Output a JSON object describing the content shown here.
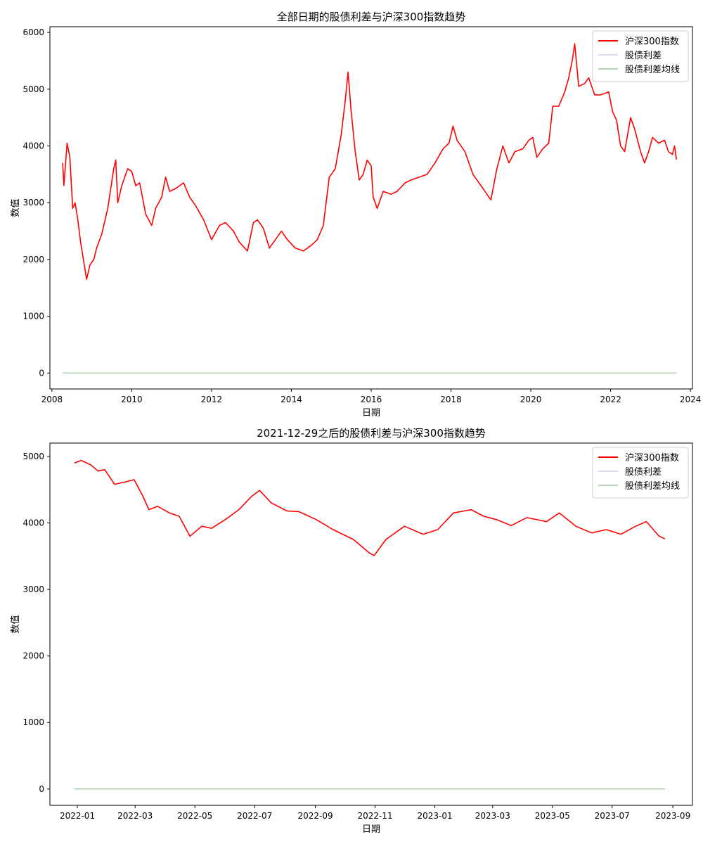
{
  "chart_data": [
    {
      "type": "line",
      "title": "全部日期的股债利差与沪深300指数趋势",
      "xlabel": "日期",
      "ylabel": "数值",
      "x_ticks": [
        "2008",
        "2010",
        "2012",
        "2014",
        "2016",
        "2018",
        "2020",
        "2022",
        "2024"
      ],
      "y_ticks": [
        "0",
        "1000",
        "2000",
        "3000",
        "4000",
        "5000",
        "6000"
      ],
      "xlim": [
        2007.95,
        2024.05
      ],
      "ylim": [
        -280,
        6100
      ],
      "grid": false,
      "legend_position": "top-right",
      "series": [
        {
          "name": "沪深300指数",
          "color": "#ff0000",
          "points": [
            [
              2008.27,
              3700
            ],
            [
              2008.3,
              3300
            ],
            [
              2008.38,
              4050
            ],
            [
              2008.45,
              3800
            ],
            [
              2008.52,
              2900
            ],
            [
              2008.58,
              3000
            ],
            [
              2008.65,
              2700
            ],
            [
              2008.72,
              2300
            ],
            [
              2008.8,
              1950
            ],
            [
              2008.87,
              1650
            ],
            [
              2008.95,
              1900
            ],
            [
              2009.05,
              2000
            ],
            [
              2009.12,
              2200
            ],
            [
              2009.25,
              2450
            ],
            [
              2009.4,
              2900
            ],
            [
              2009.55,
              3600
            ],
            [
              2009.6,
              3750
            ],
            [
              2009.65,
              3000
            ],
            [
              2009.75,
              3300
            ],
            [
              2009.9,
              3600
            ],
            [
              2010.0,
              3550
            ],
            [
              2010.1,
              3300
            ],
            [
              2010.2,
              3350
            ],
            [
              2010.35,
              2800
            ],
            [
              2010.5,
              2600
            ],
            [
              2010.6,
              2900
            ],
            [
              2010.75,
              3100
            ],
            [
              2010.85,
              3450
            ],
            [
              2010.95,
              3200
            ],
            [
              2011.1,
              3250
            ],
            [
              2011.3,
              3350
            ],
            [
              2011.45,
              3100
            ],
            [
              2011.6,
              2950
            ],
            [
              2011.8,
              2700
            ],
            [
              2012.0,
              2350
            ],
            [
              2012.2,
              2600
            ],
            [
              2012.35,
              2650
            ],
            [
              2012.55,
              2500
            ],
            [
              2012.7,
              2300
            ],
            [
              2012.9,
              2150
            ],
            [
              2013.05,
              2650
            ],
            [
              2013.15,
              2700
            ],
            [
              2013.3,
              2550
            ],
            [
              2013.45,
              2200
            ],
            [
              2013.6,
              2350
            ],
            [
              2013.75,
              2500
            ],
            [
              2013.9,
              2350
            ],
            [
              2014.1,
              2200
            ],
            [
              2014.3,
              2150
            ],
            [
              2014.5,
              2250
            ],
            [
              2014.65,
              2350
            ],
            [
              2014.8,
              2600
            ],
            [
              2014.95,
              3450
            ],
            [
              2015.1,
              3600
            ],
            [
              2015.25,
              4200
            ],
            [
              2015.35,
              4800
            ],
            [
              2015.42,
              5300
            ],
            [
              2015.5,
              4600
            ],
            [
              2015.6,
              3900
            ],
            [
              2015.7,
              3400
            ],
            [
              2015.8,
              3500
            ],
            [
              2015.9,
              3750
            ],
            [
              2016.0,
              3650
            ],
            [
              2016.05,
              3100
            ],
            [
              2016.15,
              2900
            ],
            [
              2016.3,
              3200
            ],
            [
              2016.5,
              3150
            ],
            [
              2016.65,
              3200
            ],
            [
              2016.85,
              3350
            ],
            [
              2017.0,
              3400
            ],
            [
              2017.2,
              3450
            ],
            [
              2017.4,
              3500
            ],
            [
              2017.6,
              3700
            ],
            [
              2017.8,
              3950
            ],
            [
              2017.95,
              4050
            ],
            [
              2018.05,
              4350
            ],
            [
              2018.15,
              4100
            ],
            [
              2018.35,
              3900
            ],
            [
              2018.55,
              3500
            ],
            [
              2018.7,
              3350
            ],
            [
              2018.85,
              3200
            ],
            [
              2019.0,
              3050
            ],
            [
              2019.15,
              3600
            ],
            [
              2019.3,
              4000
            ],
            [
              2019.45,
              3700
            ],
            [
              2019.6,
              3900
            ],
            [
              2019.8,
              3950
            ],
            [
              2019.95,
              4100
            ],
            [
              2020.05,
              4150
            ],
            [
              2020.15,
              3800
            ],
            [
              2020.3,
              3950
            ],
            [
              2020.45,
              4050
            ],
            [
              2020.55,
              4700
            ],
            [
              2020.7,
              4700
            ],
            [
              2020.85,
              4950
            ],
            [
              2020.95,
              5200
            ],
            [
              2021.05,
              5550
            ],
            [
              2021.1,
              5800
            ],
            [
              2021.2,
              5050
            ],
            [
              2021.35,
              5100
            ],
            [
              2021.45,
              5200
            ],
            [
              2021.6,
              4900
            ],
            [
              2021.75,
              4900
            ],
            [
              2021.95,
              4950
            ],
            [
              2022.05,
              4600
            ],
            [
              2022.15,
              4450
            ],
            [
              2022.25,
              4000
            ],
            [
              2022.35,
              3900
            ],
            [
              2022.5,
              4500
            ],
            [
              2022.6,
              4300
            ],
            [
              2022.75,
              3900
            ],
            [
              2022.85,
              3700
            ],
            [
              2022.95,
              3900
            ],
            [
              2023.05,
              4150
            ],
            [
              2023.2,
              4050
            ],
            [
              2023.35,
              4100
            ],
            [
              2023.45,
              3900
            ],
            [
              2023.55,
              3850
            ],
            [
              2023.6,
              4000
            ],
            [
              2023.65,
              3760
            ]
          ]
        },
        {
          "name": "股债利差",
          "color": "#ccccee",
          "points": [
            [
              2008.27,
              2
            ],
            [
              2023.65,
              2
            ]
          ]
        },
        {
          "name": "股债利差均线",
          "color": "#99cc99",
          "points": [
            [
              2008.27,
              2
            ],
            [
              2023.65,
              2
            ]
          ]
        }
      ]
    },
    {
      "type": "line",
      "title": "2021-12-29之后的股债利差与沪深300指数趋势",
      "xlabel": "日期",
      "ylabel": "数值",
      "x_ticks": [
        "2022-01",
        "2022-03",
        "2022-05",
        "2022-07",
        "2022-09",
        "2022-11",
        "2023-01",
        "2023-03",
        "2023-05",
        "2023-07",
        "2023-09"
      ],
      "y_ticks": [
        "0",
        "1000",
        "2000",
        "3000",
        "4000",
        "5000"
      ],
      "xlim": [
        "2021-12-04",
        "2023-09-21"
      ],
      "ylim": [
        -245,
        5200
      ],
      "grid": false,
      "legend_position": "top-right",
      "series": [
        {
          "name": "沪深300指数",
          "color": "#ff0000",
          "points": [
            [
              "2021-12-29",
              4900
            ],
            [
              "2022-01-05",
              4940
            ],
            [
              "2022-01-15",
              4870
            ],
            [
              "2022-01-22",
              4780
            ],
            [
              "2022-01-29",
              4800
            ],
            [
              "2022-02-08",
              4580
            ],
            [
              "2022-02-20",
              4620
            ],
            [
              "2022-02-28",
              4650
            ],
            [
              "2022-03-09",
              4400
            ],
            [
              "2022-03-15",
              4200
            ],
            [
              "2022-03-24",
              4250
            ],
            [
              "2022-04-05",
              4150
            ],
            [
              "2022-04-15",
              4100
            ],
            [
              "2022-04-26",
              3800
            ],
            [
              "2022-05-08",
              3950
            ],
            [
              "2022-05-18",
              3920
            ],
            [
              "2022-06-01",
              4050
            ],
            [
              "2022-06-15",
              4200
            ],
            [
              "2022-06-28",
              4400
            ],
            [
              "2022-07-06",
              4490
            ],
            [
              "2022-07-18",
              4300
            ],
            [
              "2022-08-03",
              4180
            ],
            [
              "2022-08-15",
              4170
            ],
            [
              "2022-09-02",
              4050
            ],
            [
              "2022-09-19",
              3900
            ],
            [
              "2022-10-10",
              3750
            ],
            [
              "2022-10-26",
              3550
            ],
            [
              "2022-10-31",
              3510
            ],
            [
              "2022-11-12",
              3750
            ],
            [
              "2022-12-01",
              3950
            ],
            [
              "2022-12-20",
              3830
            ],
            [
              "2023-01-04",
              3900
            ],
            [
              "2023-01-20",
              4150
            ],
            [
              "2023-02-07",
              4200
            ],
            [
              "2023-02-20",
              4100
            ],
            [
              "2023-03-05",
              4050
            ],
            [
              "2023-03-20",
              3960
            ],
            [
              "2023-04-05",
              4080
            ],
            [
              "2023-04-25",
              4020
            ],
            [
              "2023-05-08",
              4150
            ],
            [
              "2023-05-25",
              3950
            ],
            [
              "2023-06-10",
              3850
            ],
            [
              "2023-06-25",
              3900
            ],
            [
              "2023-07-10",
              3830
            ],
            [
              "2023-07-25",
              3950
            ],
            [
              "2023-08-05",
              4020
            ],
            [
              "2023-08-18",
              3800
            ],
            [
              "2023-08-24",
              3760
            ]
          ]
        },
        {
          "name": "股债利差",
          "color": "#ccccee",
          "points": [
            [
              "2021-12-29",
              2
            ],
            [
              "2023-08-24",
              2
            ]
          ]
        },
        {
          "name": "股债利差均线",
          "color": "#99cc99",
          "points": [
            [
              "2021-12-29",
              2
            ],
            [
              "2023-08-24",
              2
            ]
          ]
        }
      ]
    }
  ]
}
